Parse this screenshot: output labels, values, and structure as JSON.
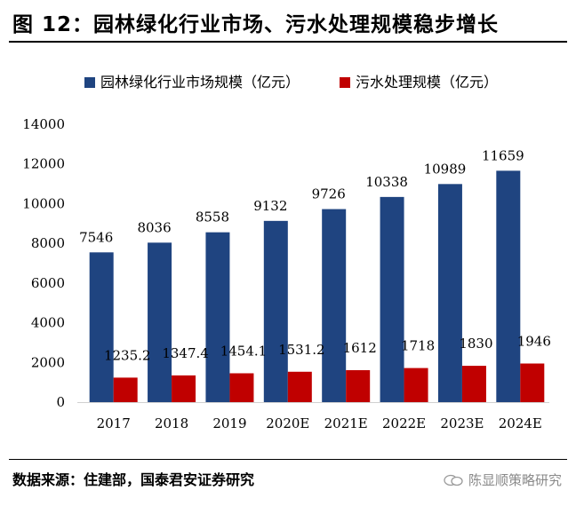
{
  "header": {
    "title": "图 12：园林绿化行业市场、污水处理规模稳步增长"
  },
  "footer": {
    "source": "数据来源：住建部，国泰君安证券研究",
    "watermark": "陈显顺策略研究"
  },
  "colors": {
    "series1": "#1f4480",
    "series2": "#c00000"
  },
  "chart_data": {
    "type": "bar",
    "categories": [
      "2017",
      "2018",
      "2019",
      "2020E",
      "2021E",
      "2022E",
      "2023E",
      "2024E"
    ],
    "series": [
      {
        "name": "园林绿化行业市场规模（亿元）",
        "values": [
          7546,
          8036,
          8558,
          9132,
          9726,
          10338,
          10989,
          11659
        ],
        "labels": [
          "7546",
          "8036",
          "8558",
          "9132",
          "9726",
          "10338",
          "10989",
          "11659"
        ]
      },
      {
        "name": "污水处理规模（亿元）",
        "values": [
          1235.2,
          1347.4,
          1454.1,
          1531.2,
          1612,
          1718,
          1830,
          1946
        ],
        "labels": [
          "1235.2",
          "1347.4",
          "1454.1",
          "1531.2",
          "1612",
          "1718",
          "1830",
          "1946"
        ]
      }
    ],
    "yticks": [
      "0",
      "2000",
      "4000",
      "6000",
      "8000",
      "10000",
      "12000",
      "14000"
    ],
    "ylim": [
      0,
      14000
    ],
    "legend": "top",
    "grid": false
  }
}
